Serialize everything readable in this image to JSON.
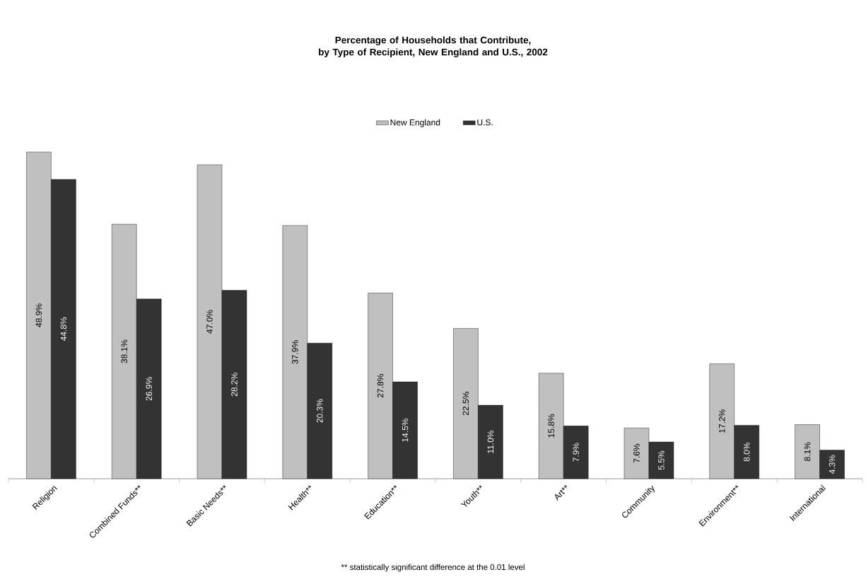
{
  "chart_data": {
    "type": "bar",
    "title": "Percentage of Households that Contribute,\nby Type of Recipient, New England and U.S., 2002",
    "categories": [
      "Religion",
      "Combined Funds**",
      "Basic Needs**",
      "Health**",
      "Education**",
      "Youth**",
      "Art**",
      "Community",
      "Environment**",
      "International"
    ],
    "series": [
      {
        "name": "New England",
        "color": "#c0c0c0",
        "values": [
          48.9,
          38.1,
          47.0,
          37.9,
          27.8,
          22.5,
          15.8,
          7.6,
          17.2,
          8.1
        ],
        "value_labels": [
          "48.9%",
          "38.1%",
          "47.0%",
          "37.9%",
          "27.8%",
          "22.5%",
          "15.8%",
          "7.6%",
          "17.2%",
          "8.1%"
        ]
      },
      {
        "name": "U.S.",
        "color": "#333333",
        "values": [
          44.8,
          26.9,
          28.2,
          20.3,
          14.5,
          11.0,
          7.9,
          5.5,
          8.0,
          4.3
        ],
        "value_labels": [
          "44.8%",
          "26.9%",
          "28.2%",
          "20.3%",
          "14.5%",
          "11.0%",
          "7.9%",
          "5.5%",
          "8.0%",
          "4.3%"
        ]
      }
    ],
    "legend": "top",
    "annotations": [
      "** statistically significant difference at the 0.01 level"
    ]
  }
}
